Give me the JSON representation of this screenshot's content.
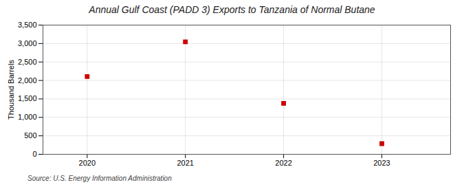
{
  "chart_data": {
    "type": "scatter",
    "title": "Annual Gulf Coast (PADD 3) Exports to Tanzania of Normal Butane",
    "ylabel": "Thousand Barrels",
    "annotations": [
      "Source: U.S. Energy Information Administration"
    ],
    "x": [
      2020,
      2021,
      2022,
      2023
    ],
    "values": [
      2107,
      3047,
      1379,
      289
    ],
    "color": "#CC0000",
    "marker": "square",
    "xlim": [
      2019.55,
      2023.7
    ],
    "xticks": [
      2020,
      2021,
      2022,
      2023
    ],
    "ylim": [
      0,
      3500
    ],
    "yticks": [
      0,
      500,
      {
        "value": 1000,
        "label": "1,000"
      },
      {
        "value": 1500,
        "label": "1,500"
      },
      {
        "value": 2000,
        "label": "2,000"
      },
      {
        "value": 2500,
        "label": "2,500"
      },
      {
        "value": 3000,
        "label": "3,000"
      },
      {
        "value": 3500,
        "label": "3,500"
      }
    ],
    "grid": true
  }
}
